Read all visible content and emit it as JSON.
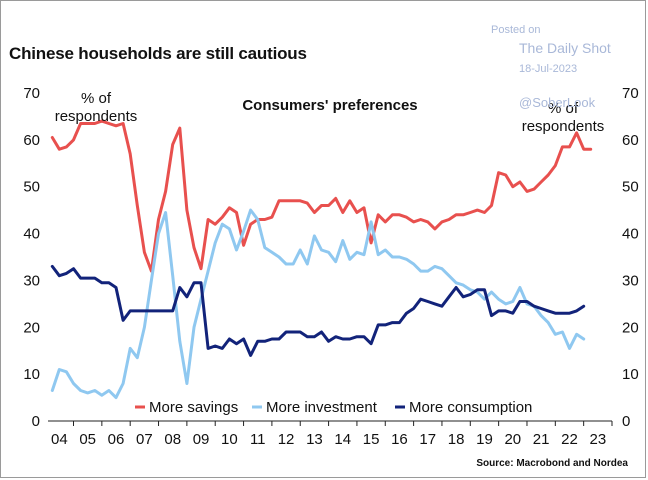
{
  "title": "Chinese households are still cautious",
  "watermark": {
    "posted": "Posted on",
    "brand": "The Daily Shot",
    "date": "18-Jul-2023",
    "handle": "@SoberLook"
  },
  "source": "Source: Macrobond and Nordea",
  "chart_data": {
    "type": "line",
    "title": "Consumers' preferences",
    "annotation_left": [
      "% of",
      "respondents"
    ],
    "annotation_right": [
      "% of",
      "respondents"
    ],
    "ylim": [
      0,
      70
    ],
    "y_ticks": [
      0,
      10,
      20,
      30,
      40,
      50,
      60,
      70
    ],
    "xlim": [
      2003.6,
      2023.5
    ],
    "x_ticks": [
      2004,
      2005,
      2006,
      2007,
      2008,
      2009,
      2010,
      2011,
      2012,
      2013,
      2014,
      2015,
      2016,
      2017,
      2018,
      2019,
      2020,
      2021,
      2022,
      2023
    ],
    "x_tick_labels": [
      "04",
      "05",
      "06",
      "07",
      "08",
      "09",
      "10",
      "11",
      "12",
      "13",
      "14",
      "15",
      "16",
      "17",
      "18",
      "19",
      "20",
      "21",
      "22",
      "23"
    ],
    "legend": [
      "More savings",
      "More investment",
      "More consumption"
    ],
    "legend_position": "bottom",
    "series": [
      {
        "name": "More savings",
        "color": "#e8504e",
        "points": [
          [
            2003.75,
            60.5
          ],
          [
            2004.0,
            58
          ],
          [
            2004.25,
            58.5
          ],
          [
            2004.5,
            60
          ],
          [
            2004.75,
            63.5
          ],
          [
            2005.0,
            63.5
          ],
          [
            2005.25,
            63.5
          ],
          [
            2005.5,
            64
          ],
          [
            2005.75,
            63.5
          ],
          [
            2006.0,
            63
          ],
          [
            2006.25,
            63.5
          ],
          [
            2006.5,
            57
          ],
          [
            2006.75,
            46
          ],
          [
            2007.0,
            36
          ],
          [
            2007.25,
            32
          ],
          [
            2007.5,
            43
          ],
          [
            2007.75,
            49
          ],
          [
            2008.0,
            59
          ],
          [
            2008.25,
            62.5
          ],
          [
            2008.5,
            45
          ],
          [
            2008.75,
            37
          ],
          [
            2009.0,
            32.5
          ],
          [
            2009.25,
            43
          ],
          [
            2009.5,
            42
          ],
          [
            2009.75,
            43.5
          ],
          [
            2010.0,
            45.5
          ],
          [
            2010.25,
            44.5
          ],
          [
            2010.5,
            37.5
          ],
          [
            2010.75,
            42
          ],
          [
            2011.0,
            43
          ],
          [
            2011.25,
            43
          ],
          [
            2011.5,
            43.5
          ],
          [
            2011.75,
            47
          ],
          [
            2012.0,
            47
          ],
          [
            2012.25,
            47
          ],
          [
            2012.5,
            47
          ],
          [
            2012.75,
            46.5
          ],
          [
            2013.0,
            44.5
          ],
          [
            2013.25,
            46
          ],
          [
            2013.5,
            46
          ],
          [
            2013.75,
            47.5
          ],
          [
            2014.0,
            44.5
          ],
          [
            2014.25,
            47
          ],
          [
            2014.5,
            44.5
          ],
          [
            2014.75,
            45.5
          ],
          [
            2015.0,
            38
          ],
          [
            2015.25,
            44
          ],
          [
            2015.5,
            42.5
          ],
          [
            2015.75,
            44
          ],
          [
            2016.0,
            44
          ],
          [
            2016.25,
            43.5
          ],
          [
            2016.5,
            42.5
          ],
          [
            2016.75,
            43
          ],
          [
            2017.0,
            42.5
          ],
          [
            2017.25,
            41
          ],
          [
            2017.5,
            42.5
          ],
          [
            2017.75,
            43
          ],
          [
            2018.0,
            44
          ],
          [
            2018.25,
            44
          ],
          [
            2018.5,
            44.5
          ],
          [
            2018.75,
            45
          ],
          [
            2019.0,
            44.5
          ],
          [
            2019.25,
            46
          ],
          [
            2019.5,
            53
          ],
          [
            2019.75,
            52.5
          ],
          [
            2020.0,
            50
          ],
          [
            2020.25,
            51
          ],
          [
            2020.5,
            49
          ],
          [
            2020.75,
            49.5
          ],
          [
            2021.0,
            51
          ],
          [
            2021.25,
            52.5
          ],
          [
            2021.5,
            54.5
          ],
          [
            2021.75,
            58.5
          ],
          [
            2022.0,
            58.5
          ],
          [
            2022.25,
            61.5
          ],
          [
            2022.5,
            58
          ],
          [
            2022.75,
            58
          ]
        ]
      },
      {
        "name": "More investment",
        "color": "#8fc8f0",
        "points": [
          [
            2003.75,
            6.5
          ],
          [
            2004.0,
            11
          ],
          [
            2004.25,
            10.5
          ],
          [
            2004.5,
            8
          ],
          [
            2004.75,
            6.5
          ],
          [
            2005.0,
            6
          ],
          [
            2005.25,
            6.5
          ],
          [
            2005.5,
            5.5
          ],
          [
            2005.75,
            6.5
          ],
          [
            2006.0,
            5
          ],
          [
            2006.25,
            8
          ],
          [
            2006.5,
            15.5
          ],
          [
            2006.75,
            13.5
          ],
          [
            2007.0,
            20
          ],
          [
            2007.25,
            30
          ],
          [
            2007.5,
            40
          ],
          [
            2007.75,
            44.5
          ],
          [
            2008.0,
            31
          ],
          [
            2008.25,
            17
          ],
          [
            2008.5,
            8
          ],
          [
            2008.75,
            20
          ],
          [
            2009.0,
            26
          ],
          [
            2009.25,
            32
          ],
          [
            2009.5,
            38
          ],
          [
            2009.75,
            42
          ],
          [
            2010.0,
            41
          ],
          [
            2010.25,
            36.5
          ],
          [
            2010.5,
            40.5
          ],
          [
            2010.75,
            45
          ],
          [
            2011.0,
            43
          ],
          [
            2011.25,
            37
          ],
          [
            2011.5,
            36
          ],
          [
            2011.75,
            35
          ],
          [
            2012.0,
            33.5
          ],
          [
            2012.25,
            33.5
          ],
          [
            2012.5,
            36.5
          ],
          [
            2012.75,
            33.5
          ],
          [
            2013.0,
            39.5
          ],
          [
            2013.25,
            36.5
          ],
          [
            2013.5,
            36
          ],
          [
            2013.75,
            34
          ],
          [
            2014.0,
            38.5
          ],
          [
            2014.25,
            34.5
          ],
          [
            2014.5,
            36
          ],
          [
            2014.75,
            35.5
          ],
          [
            2015.0,
            42.5
          ],
          [
            2015.25,
            35.5
          ],
          [
            2015.5,
            36.5
          ],
          [
            2015.75,
            35
          ],
          [
            2016.0,
            35
          ],
          [
            2016.25,
            34.5
          ],
          [
            2016.5,
            33.5
          ],
          [
            2016.75,
            32
          ],
          [
            2017.0,
            32
          ],
          [
            2017.25,
            33
          ],
          [
            2017.5,
            32.5
          ],
          [
            2017.75,
            31
          ],
          [
            2018.0,
            29.5
          ],
          [
            2018.25,
            29
          ],
          [
            2018.5,
            28
          ],
          [
            2018.75,
            27.5
          ],
          [
            2019.0,
            26
          ],
          [
            2019.25,
            27.5
          ],
          [
            2019.5,
            26
          ],
          [
            2019.75,
            25
          ],
          [
            2020.0,
            25.5
          ],
          [
            2020.25,
            28.5
          ],
          [
            2020.5,
            25
          ],
          [
            2020.75,
            24.5
          ],
          [
            2021.0,
            22.5
          ],
          [
            2021.25,
            21
          ],
          [
            2021.5,
            18.5
          ],
          [
            2021.75,
            19
          ],
          [
            2022.0,
            15.5
          ],
          [
            2022.25,
            18.5
          ],
          [
            2022.5,
            17.5
          ]
        ]
      },
      {
        "name": "More consumption",
        "color": "#12237a",
        "points": [
          [
            2003.75,
            33
          ],
          [
            2004.0,
            31
          ],
          [
            2004.25,
            31.5
          ],
          [
            2004.5,
            32.5
          ],
          [
            2004.75,
            30.5
          ],
          [
            2005.0,
            30.5
          ],
          [
            2005.25,
            30.5
          ],
          [
            2005.5,
            29.5
          ],
          [
            2005.75,
            29.5
          ],
          [
            2006.0,
            28.5
          ],
          [
            2006.25,
            21.5
          ],
          [
            2006.5,
            23.5
          ],
          [
            2006.75,
            23.5
          ],
          [
            2007.0,
            23.5
          ],
          [
            2007.25,
            23.5
          ],
          [
            2007.5,
            23.5
          ],
          [
            2007.75,
            23.5
          ],
          [
            2008.0,
            23.5
          ],
          [
            2008.25,
            28.5
          ],
          [
            2008.5,
            26.5
          ],
          [
            2008.75,
            29.5
          ],
          [
            2009.0,
            29.5
          ],
          [
            2009.25,
            15.5
          ],
          [
            2009.5,
            16
          ],
          [
            2009.75,
            15.5
          ],
          [
            2010.0,
            17.5
          ],
          [
            2010.25,
            16.5
          ],
          [
            2010.5,
            17.5
          ],
          [
            2010.75,
            14
          ],
          [
            2011.0,
            17
          ],
          [
            2011.25,
            17
          ],
          [
            2011.5,
            17.5
          ],
          [
            2011.75,
            17.5
          ],
          [
            2012.0,
            19
          ],
          [
            2012.25,
            19
          ],
          [
            2012.5,
            19
          ],
          [
            2012.75,
            18
          ],
          [
            2013.0,
            18
          ],
          [
            2013.25,
            19
          ],
          [
            2013.5,
            17
          ],
          [
            2013.75,
            18
          ],
          [
            2014.0,
            17.5
          ],
          [
            2014.25,
            17.5
          ],
          [
            2014.5,
            18
          ],
          [
            2014.75,
            18
          ],
          [
            2015.0,
            16.5
          ],
          [
            2015.25,
            20.5
          ],
          [
            2015.5,
            20.5
          ],
          [
            2015.75,
            21
          ],
          [
            2016.0,
            21
          ],
          [
            2016.25,
            23
          ],
          [
            2016.5,
            24
          ],
          [
            2016.75,
            26
          ],
          [
            2017.0,
            25.5
          ],
          [
            2017.25,
            25
          ],
          [
            2017.5,
            24.5
          ],
          [
            2017.75,
            26.5
          ],
          [
            2018.0,
            28.5
          ],
          [
            2018.25,
            26.5
          ],
          [
            2018.5,
            27
          ],
          [
            2018.75,
            28
          ],
          [
            2019.0,
            28
          ],
          [
            2019.25,
            22.5
          ],
          [
            2019.5,
            23.5
          ],
          [
            2019.75,
            23.5
          ],
          [
            2020.0,
            23
          ],
          [
            2020.25,
            25.5
          ],
          [
            2020.5,
            25.5
          ],
          [
            2020.75,
            24.5
          ],
          [
            2021.0,
            24
          ],
          [
            2021.25,
            23.5
          ],
          [
            2021.5,
            23
          ],
          [
            2021.75,
            23
          ],
          [
            2022.0,
            23
          ],
          [
            2022.25,
            23.5
          ],
          [
            2022.5,
            24.5
          ]
        ]
      }
    ]
  }
}
